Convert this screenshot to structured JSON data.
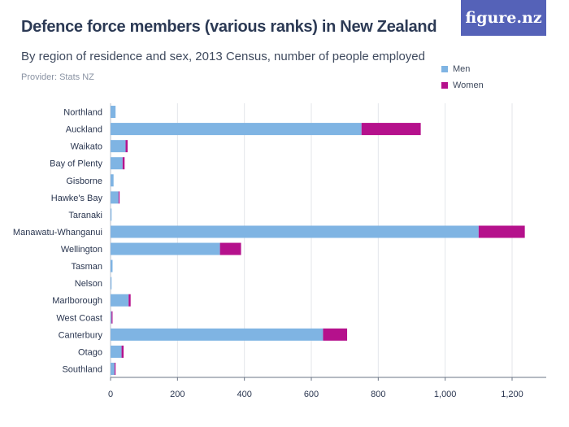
{
  "title": "Defence force members (various ranks) in New Zealand",
  "subtitle": "By region of residence and sex, 2013 Census, number of people employed",
  "provider": "Provider: Stats NZ",
  "logo_text": "figure.nz",
  "chart_data": {
    "type": "bar",
    "orientation": "horizontal",
    "stacked": true,
    "categories": [
      "Northland",
      "Auckland",
      "Waikato",
      "Bay of Plenty",
      "Gisborne",
      "Hawke's Bay",
      "Taranaki",
      "Manawatu-Whanganui",
      "Wellington",
      "Tasman",
      "Nelson",
      "Marlborough",
      "West Coast",
      "Canterbury",
      "Otago",
      "Southland"
    ],
    "series": [
      {
        "name": "Men",
        "color": "#7fb4e3",
        "values": [
          15,
          750,
          45,
          36,
          9,
          24,
          3,
          1100,
          327,
          6,
          3,
          54,
          3,
          635,
          33,
          12
        ]
      },
      {
        "name": "Women",
        "color": "#b5118c",
        "values": [
          0,
          177,
          6,
          6,
          0,
          3,
          0,
          138,
          63,
          0,
          0,
          6,
          3,
          72,
          6,
          3
        ]
      }
    ],
    "xlim": [
      0,
      1300
    ],
    "xticks": [
      0,
      200,
      400,
      600,
      800,
      1000,
      1200
    ],
    "xtick_labels": [
      "0",
      "200",
      "400",
      "600",
      "800",
      "1,000",
      "1,200"
    ],
    "grid": true,
    "legend_position": "top-right"
  }
}
